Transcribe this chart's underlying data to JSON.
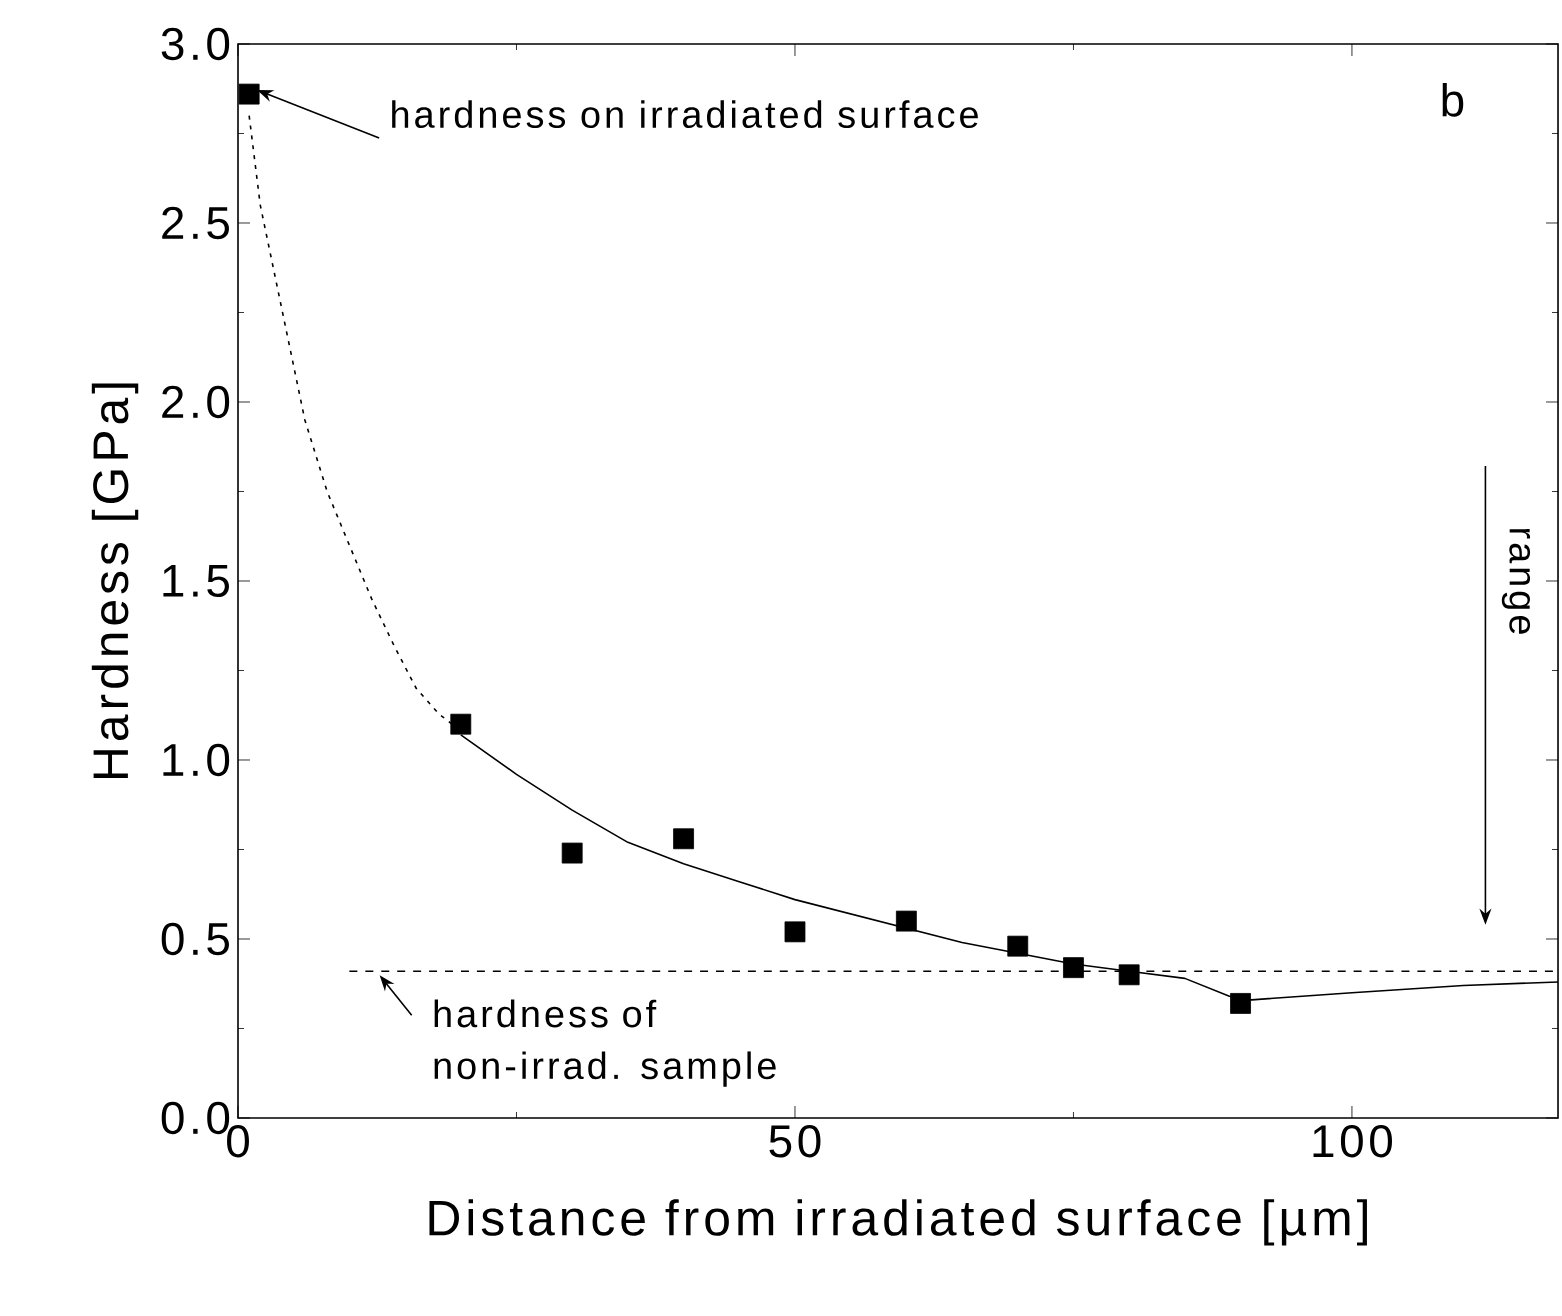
{
  "chart_data": {
    "type": "scatter",
    "xlabel": "Distance from irradiated surface [µm]",
    "ylabel": "Hardness [GPa]",
    "xlim": [
      0,
      118.5
    ],
    "ylim": [
      0,
      3
    ],
    "xticks": [
      0,
      50,
      100
    ],
    "yticks": [
      {
        "value": 0,
        "label": "0.0"
      },
      {
        "value": 0.5,
        "label": "0.5"
      },
      {
        "value": 1,
        "label": "1.0"
      },
      {
        "value": 1.5,
        "label": "1.5"
      },
      {
        "value": 2,
        "label": "2.0"
      },
      {
        "value": 2.5,
        "label": "2.5"
      },
      {
        "value": 3,
        "label": "3.0"
      }
    ],
    "grid": false,
    "series": [
      {
        "marker": "square",
        "color": "#000000",
        "x": [
          1,
          20,
          30,
          40,
          50,
          60,
          70,
          75,
          80,
          90
        ],
        "values": [
          2.86,
          1.1,
          0.74,
          0.78,
          0.52,
          0.55,
          0.48,
          0.42,
          0.4,
          0.32
        ]
      },
      {
        "type": "line",
        "marker": "none",
        "line_style": "dotted",
        "color": "#000000",
        "x": [
          1,
          2,
          4,
          6,
          8,
          10,
          12,
          14,
          16,
          18,
          20
        ],
        "values": [
          2.8,
          2.55,
          2.25,
          1.95,
          1.75,
          1.6,
          1.45,
          1.32,
          1.2,
          1.13,
          1.08
        ]
      },
      {
        "type": "line",
        "marker": "none",
        "line_style": "solid",
        "color": "#000000",
        "x": [
          20,
          25,
          30,
          35,
          40,
          45,
          50,
          55,
          60,
          65,
          70,
          75,
          80,
          85,
          89,
          91,
          100,
          110,
          118.5
        ],
        "values": [
          1.07,
          0.96,
          0.86,
          0.77,
          0.71,
          0.66,
          0.61,
          0.57,
          0.53,
          0.49,
          0.46,
          0.43,
          0.41,
          0.39,
          0.34,
          0.33,
          0.35,
          0.37,
          0.38
        ]
      },
      {
        "type": "line",
        "marker": "none",
        "line_style": "dashed",
        "color": "#000000",
        "x": [
          10,
          118.5
        ],
        "values": [
          0.41,
          0.41
        ]
      }
    ],
    "annotations": [
      {
        "text": "hardness on irradiated surface",
        "x": 1,
        "y": 2.86
      },
      {
        "text": "hardness of non-irrad. sample",
        "x": 12,
        "y": 0.41
      },
      "range",
      "b"
    ]
  }
}
